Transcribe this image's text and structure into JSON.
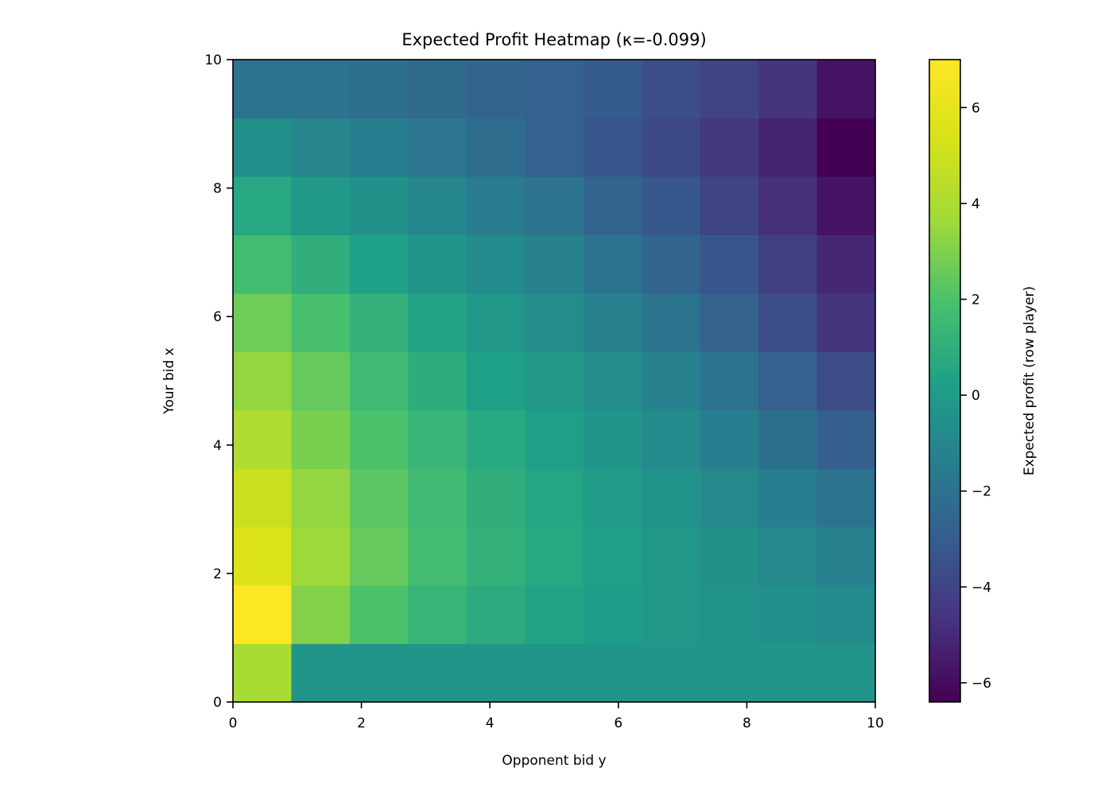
{
  "chart_data": {
    "type": "heatmap",
    "title": "Expected Profit Heatmap (κ=-0.099)",
    "xlabel": "Opponent bid y",
    "ylabel": "Your bid x",
    "xlim": [
      0,
      10
    ],
    "ylim": [
      0,
      10
    ],
    "x_ticks": [
      "0",
      "2",
      "4",
      "6",
      "8",
      "10"
    ],
    "y_ticks": [
      "0",
      "2",
      "4",
      "6",
      "8",
      "10"
    ],
    "grid": false,
    "colormap": "viridis",
    "colorbar": {
      "label": "Expected profit (row player)",
      "range": [
        -6.4,
        7.0
      ],
      "ticks": [
        "−6",
        "−4",
        "−2",
        "0",
        "2",
        "4",
        "6"
      ]
    },
    "row_note": "rows listed from bottom (x≈0) to top (x≈10); 11 columns from y≈0 to y≈10",
    "values": [
      [
        3.9,
        -0.3,
        -0.3,
        -0.3,
        -0.3,
        -0.3,
        -0.3,
        -0.3,
        -0.3,
        -0.3,
        -0.3
      ],
      [
        7.0,
        3.1,
        2.0,
        1.3,
        0.8,
        0.4,
        0.1,
        -0.2,
        -0.4,
        -0.6,
        -0.8
      ],
      [
        5.6,
        3.6,
        2.5,
        1.7,
        1.1,
        0.6,
        0.2,
        -0.2,
        -0.5,
        -0.9,
        -1.3
      ],
      [
        4.9,
        3.4,
        2.3,
        1.6,
        1.0,
        0.5,
        0.0,
        -0.4,
        -0.9,
        -1.4,
        -2.0
      ],
      [
        4.1,
        2.9,
        2.0,
        1.3,
        0.7,
        0.2,
        -0.3,
        -0.8,
        -1.4,
        -2.1,
        -2.9
      ],
      [
        3.4,
        2.5,
        1.6,
        0.9,
        0.3,
        -0.2,
        -0.7,
        -1.3,
        -2.0,
        -2.8,
        -3.7
      ],
      [
        2.7,
        1.9,
        1.1,
        0.4,
        -0.2,
        -0.7,
        -1.3,
        -1.9,
        -2.7,
        -3.6,
        -4.6
      ],
      [
        1.7,
        1.0,
        0.3,
        -0.3,
        -0.8,
        -1.3,
        -1.9,
        -2.6,
        -3.3,
        -4.2,
        -5.1
      ],
      [
        0.6,
        -0.1,
        -0.5,
        -1.0,
        -1.5,
        -2.0,
        -2.6,
        -3.2,
        -4.0,
        -4.8,
        -5.8
      ],
      [
        -0.6,
        -1.1,
        -1.4,
        -1.8,
        -2.3,
        -2.8,
        -3.3,
        -3.8,
        -4.5,
        -5.2,
        -6.4
      ],
      [
        -1.9,
        -2.0,
        -2.2,
        -2.4,
        -2.6,
        -2.8,
        -3.1,
        -3.6,
        -4.0,
        -4.6,
        -5.8
      ]
    ]
  }
}
